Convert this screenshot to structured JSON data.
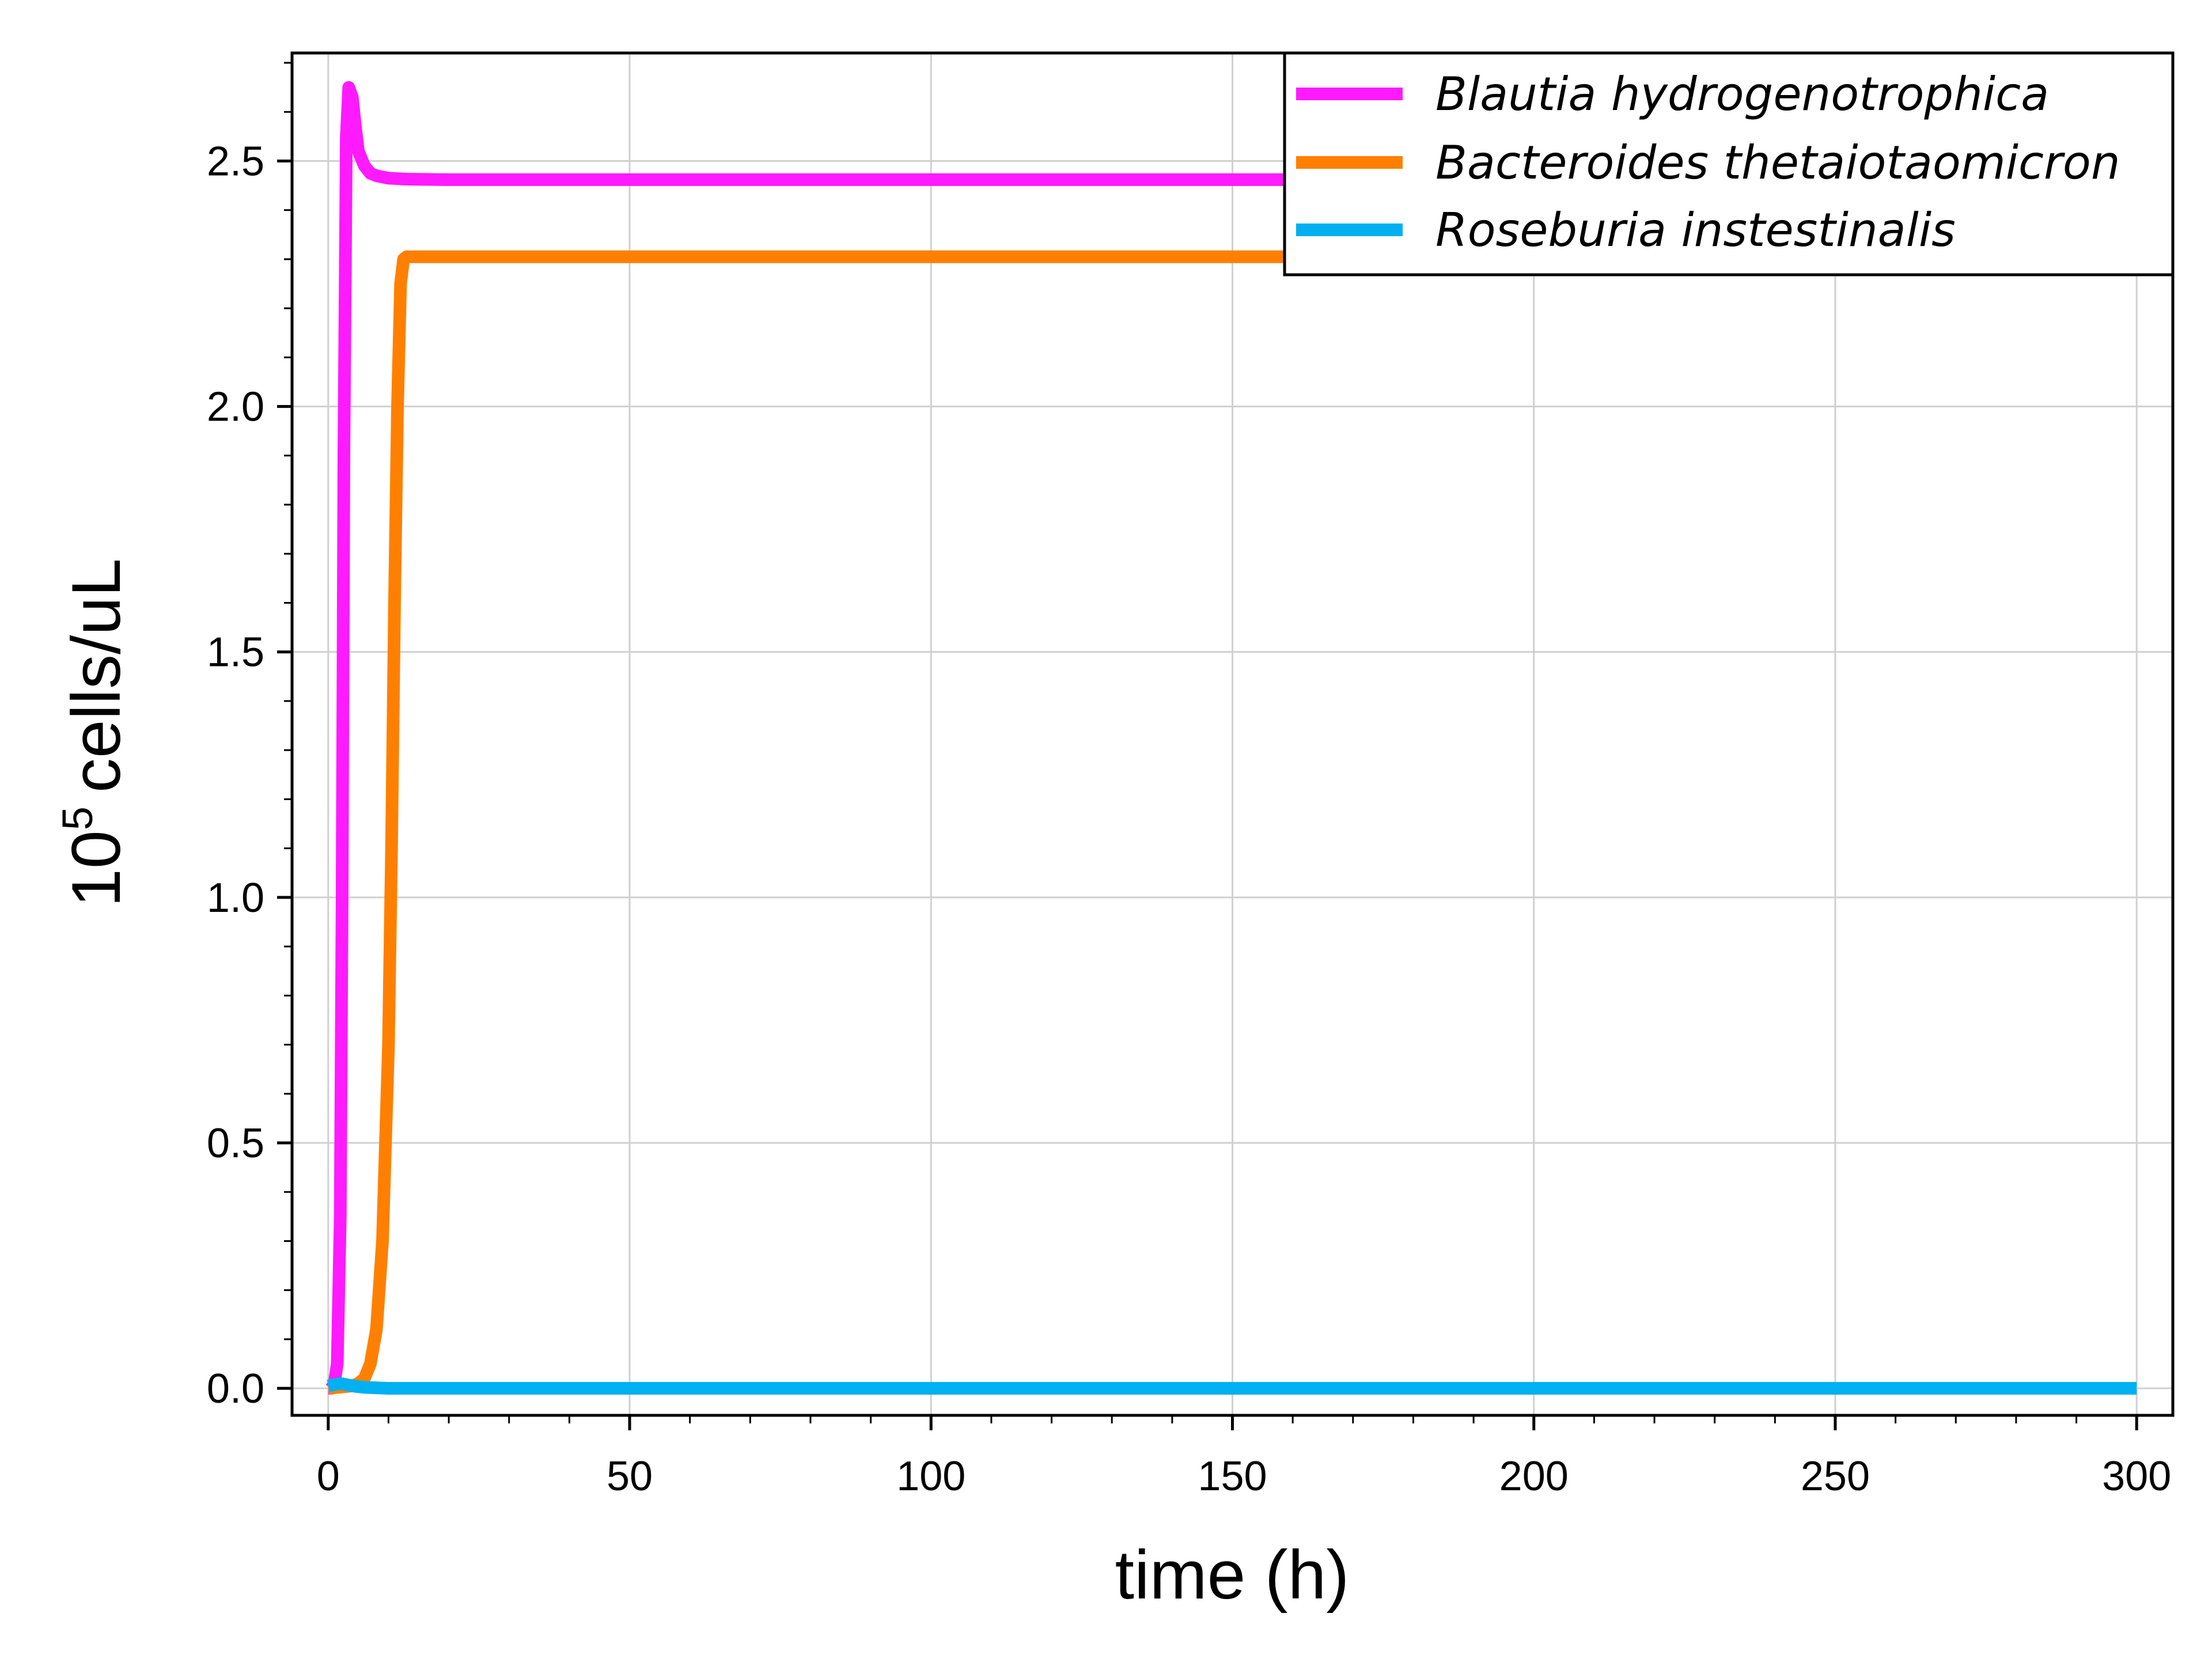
{
  "chart_data": {
    "type": "line",
    "title": "",
    "xlabel": "time (h)",
    "ylabel": {
      "base": "10",
      "exponent": "5",
      "unit": "cells/uL"
    },
    "xlim": [
      -6,
      306
    ],
    "ylim": [
      -0.055,
      2.72
    ],
    "xticks": [
      0,
      50,
      100,
      150,
      200,
      250,
      300
    ],
    "xtick_labels": [
      "0",
      "50",
      "100",
      "150",
      "200",
      "250",
      "300"
    ],
    "yticks": [
      0.0,
      0.5,
      1.0,
      1.5,
      2.0,
      2.5
    ],
    "ytick_labels": [
      "0.0",
      "0.5",
      "1.0",
      "1.5",
      "2.0",
      "2.5"
    ],
    "x_minor_step": 10,
    "y_minor_step": 0.1,
    "grid": true,
    "legend_position": "top-right",
    "series": [
      {
        "name": "Blautia hydrogenotrophica",
        "color": "#ff1aff",
        "x": [
          0,
          0.5,
          1,
          1.5,
          2,
          2.3,
          2.6,
          3,
          3.4,
          4,
          4.5,
          5,
          6,
          7,
          8,
          10,
          13,
          20,
          50,
          100,
          150,
          200,
          250,
          300
        ],
        "y": [
          0.0,
          0.0,
          0.01,
          0.05,
          0.35,
          1.0,
          1.9,
          2.55,
          2.65,
          2.63,
          2.57,
          2.52,
          2.49,
          2.475,
          2.47,
          2.465,
          2.463,
          2.462,
          2.462,
          2.462,
          2.462,
          2.462,
          2.462,
          2.462
        ]
      },
      {
        "name": "Bacteroides thetaiotaomicron",
        "color": "#ff8000",
        "x": [
          0,
          4,
          5,
          6,
          7,
          8,
          9,
          10,
          10.5,
          11,
          11.5,
          12,
          12.5,
          13,
          14,
          20,
          50,
          100,
          150,
          200,
          250,
          300
        ],
        "y": [
          0.0,
          0.005,
          0.01,
          0.02,
          0.05,
          0.12,
          0.3,
          0.7,
          1.1,
          1.6,
          2.0,
          2.25,
          2.3,
          2.305,
          2.305,
          2.305,
          2.305,
          2.305,
          2.305,
          2.305,
          2.305,
          2.305
        ]
      },
      {
        "name": "Roseburia instestinalis",
        "color": "#00b0f0",
        "x": [
          0,
          2,
          4,
          6,
          10,
          20,
          50,
          100,
          150,
          200,
          250,
          300
        ],
        "y": [
          0.005,
          0.01,
          0.005,
          0.002,
          0.0,
          0.0,
          0.0,
          0.0,
          0.0,
          0.0,
          0.0,
          0.0
        ]
      }
    ]
  }
}
